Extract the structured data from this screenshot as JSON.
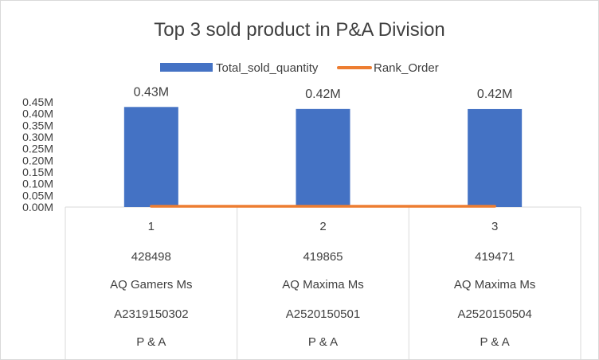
{
  "chart_data": {
    "type": "bar",
    "title": "Top 3 sold product in P&A Division",
    "legend": {
      "position": "top",
      "entries": [
        "Total_sold_quantity",
        "Rank_Order"
      ]
    },
    "series": [
      {
        "name": "Total_sold_quantity",
        "type": "bar",
        "color": "#4472C4",
        "values": [
          428498,
          419865,
          419471
        ],
        "data_labels": [
          "0.43M",
          "0.42M",
          "0.42M"
        ]
      },
      {
        "name": "Rank_Order",
        "type": "line",
        "color": "#ED7D31",
        "values": [
          1,
          2,
          3
        ]
      }
    ],
    "categories": [
      [
        "1",
        "428498",
        "AQ Gamers Ms",
        "A2319150302",
        "P & A"
      ],
      [
        "2",
        "419865",
        "AQ Maxima Ms",
        "A2520150501",
        "P & A"
      ],
      [
        "3",
        "419471",
        "AQ Maxima Ms",
        "A2520150504",
        "P & A"
      ]
    ],
    "y_ticks": [
      "0.00M",
      "0.05M",
      "0.10M",
      "0.15M",
      "0.20M",
      "0.25M",
      "0.30M",
      "0.35M",
      "0.40M",
      "0.45M"
    ],
    "ylim": [
      0,
      450000
    ],
    "grid": false
  }
}
